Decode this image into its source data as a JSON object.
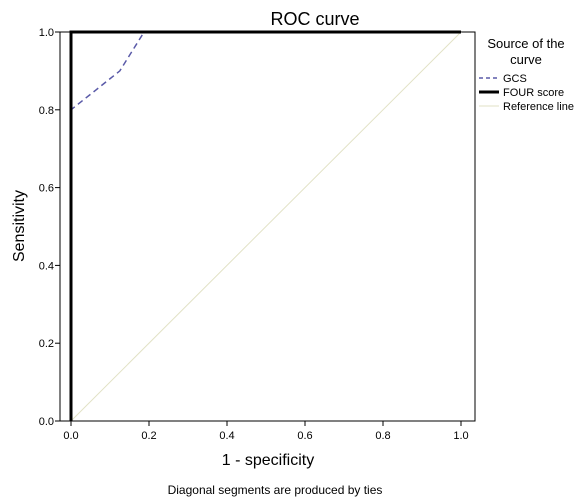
{
  "chart_data": {
    "type": "line",
    "title": "ROC curve",
    "xlabel": "1 - specificity",
    "ylabel": "Sensitivity",
    "xlim": [
      0,
      1
    ],
    "ylim": [
      0,
      1
    ],
    "x_ticks": [
      "0.0",
      "0.2",
      "0.4",
      "0.6",
      "0.8",
      "1.0"
    ],
    "y_ticks": [
      "0.0",
      "0.2",
      "0.4",
      "0.6",
      "0.8",
      "1.0"
    ],
    "grid": false,
    "legend": {
      "title_lines": [
        "Source of the",
        "curve"
      ],
      "placement": "right"
    },
    "footnote": "Diagonal segments are produced by ties",
    "series": [
      {
        "name": "GCS",
        "style": "dashed",
        "color": "#5a5aa8",
        "points": [
          [
            0,
            0
          ],
          [
            0,
            0.8
          ],
          [
            0.0625,
            0.85
          ],
          [
            0.125,
            0.9
          ],
          [
            0.1875,
            1.0
          ],
          [
            1.0,
            1.0
          ]
        ]
      },
      {
        "name": "FOUR score",
        "style": "solid-thick",
        "color": "#000000",
        "points": [
          [
            0,
            0
          ],
          [
            0,
            1.0
          ],
          [
            1.0,
            1.0
          ]
        ]
      },
      {
        "name": "Reference line",
        "style": "solid-thin",
        "color": "#e2e2c6",
        "points": [
          [
            0,
            0
          ],
          [
            1.0,
            1.0
          ]
        ]
      }
    ]
  }
}
